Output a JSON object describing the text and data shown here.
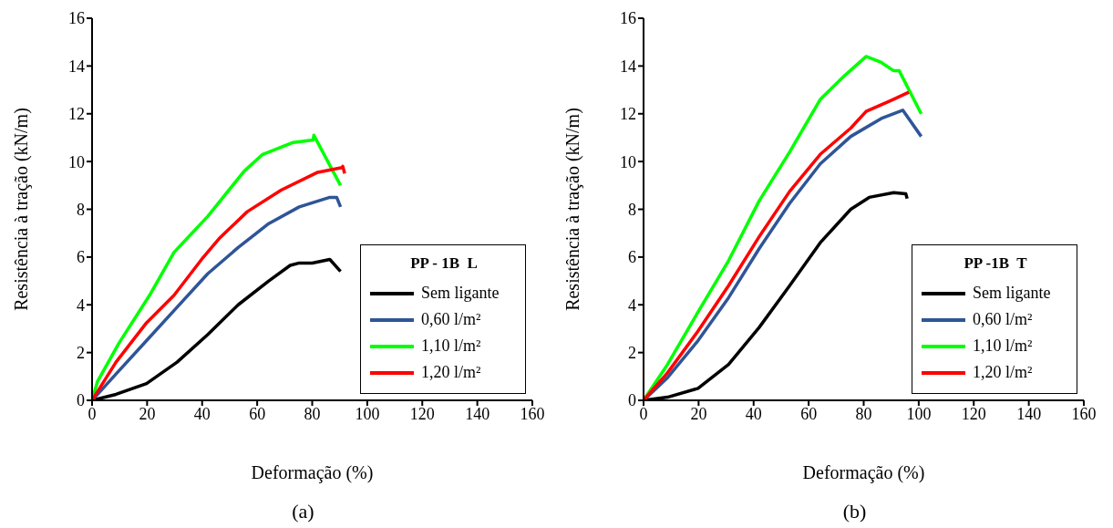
{
  "chart_data": [
    {
      "type": "line",
      "xlabel": "Deformação (%)",
      "ylabel": "Resistência à tração (kN/m)",
      "legend_title": "PP - 1B  L",
      "annotations": [
        "(a)"
      ],
      "xlim": [
        0,
        160
      ],
      "xticks": [
        0,
        20,
        40,
        60,
        80,
        100,
        120,
        140,
        160
      ],
      "ylim": [
        0,
        16
      ],
      "yticks": [
        0,
        2,
        4,
        6,
        8,
        10,
        12,
        14,
        16
      ],
      "grid": false,
      "legend": "bottom right",
      "marker": "none",
      "line_style": "solid",
      "series": [
        {
          "name": "Sem ligante",
          "color": "#000000",
          "x": [
            0,
            8.7,
            19.8,
            30.9,
            42,
            53.1,
            64.2,
            72,
            75.3,
            80,
            86.4,
            90.3
          ],
          "values": [
            0,
            0.25,
            0.7,
            1.6,
            2.75,
            4.0,
            5.0,
            5.65,
            5.75,
            5.75,
            5.9,
            5.4
          ]
        },
        {
          "name": "0,60 l/m²",
          "color": "#2f5597",
          "x": [
            0,
            8.7,
            19.8,
            30.9,
            42,
            53.1,
            64.2,
            75.3,
            86.4,
            88.9,
            90.3
          ],
          "values": [
            0,
            1.1,
            2.5,
            3.9,
            5.3,
            6.4,
            7.4,
            8.1,
            8.5,
            8.5,
            8.1
          ]
        },
        {
          "name": "1,10 l/m²",
          "color": "#00ff00",
          "x": [
            0,
            2,
            9.8,
            20.9,
            29.8,
            42,
            55.3,
            62,
            73.1,
            80.3,
            80.6,
            90.3
          ],
          "values": [
            0,
            0.8,
            2.4,
            4.4,
            6.2,
            7.7,
            9.6,
            10.3,
            10.8,
            10.9,
            11.1,
            9.0
          ]
        },
        {
          "name": "1,20 l/m²",
          "color": "#ff0000",
          "x": [
            0,
            8.7,
            19.8,
            29.8,
            39.8,
            46.4,
            56.4,
            68.7,
            82,
            90.9,
            91.1,
            91.8
          ],
          "values": [
            0,
            1.6,
            3.25,
            4.4,
            5.9,
            6.8,
            7.9,
            8.8,
            9.55,
            9.75,
            9.8,
            9.5
          ]
        }
      ]
    },
    {
      "type": "line",
      "xlabel": "Deformação (%)",
      "ylabel": "Resistência à tração (kN/m)",
      "legend_title": "PP -1B  T",
      "annotations": [
        "(b)"
      ],
      "xlim": [
        0,
        160
      ],
      "xticks": [
        0,
        20,
        40,
        60,
        80,
        100,
        120,
        140,
        160
      ],
      "ylim": [
        0,
        16
      ],
      "yticks": [
        0,
        2,
        4,
        6,
        8,
        10,
        12,
        14,
        16
      ],
      "grid": false,
      "legend": "bottom right",
      "marker": "none",
      "line_style": "solid",
      "series": [
        {
          "name": "Sem ligante",
          "color": "#000000",
          "x": [
            0,
            8.7,
            19.8,
            30.9,
            42,
            53.1,
            64.2,
            75.3,
            82,
            90.9,
            95.3,
            95.8
          ],
          "values": [
            0,
            0.13,
            0.5,
            1.5,
            3.05,
            4.8,
            6.6,
            8.0,
            8.5,
            8.7,
            8.65,
            8.45
          ]
        },
        {
          "name": "0,60 l/m²",
          "color": "#2f5597",
          "x": [
            0,
            8.7,
            19.8,
            30.9,
            42,
            53.1,
            64.2,
            75.3,
            86.4,
            94.2,
            100.9
          ],
          "values": [
            0,
            0.95,
            2.5,
            4.3,
            6.35,
            8.25,
            9.9,
            11.05,
            11.8,
            12.15,
            11.05
          ]
        },
        {
          "name": "1,10 l/m²",
          "color": "#00ff00",
          "x": [
            0,
            8.7,
            19.8,
            30.9,
            42,
            53.1,
            64.2,
            73.1,
            80.9,
            86.4,
            90.9,
            92.9,
            100.9
          ],
          "values": [
            0,
            1.5,
            3.7,
            5.85,
            8.35,
            10.4,
            12.6,
            13.6,
            14.4,
            14.15,
            13.8,
            13.8,
            12.0
          ]
        },
        {
          "name": "1,20 l/m²",
          "color": "#ff0000",
          "x": [
            0,
            8.7,
            19.8,
            30.9,
            42,
            53.1,
            64.2,
            75.3,
            80.9,
            89.8,
            96.4
          ],
          "values": [
            0,
            1.15,
            2.9,
            4.8,
            6.85,
            8.75,
            10.3,
            11.4,
            12.1,
            12.55,
            12.9
          ]
        }
      ]
    }
  ]
}
